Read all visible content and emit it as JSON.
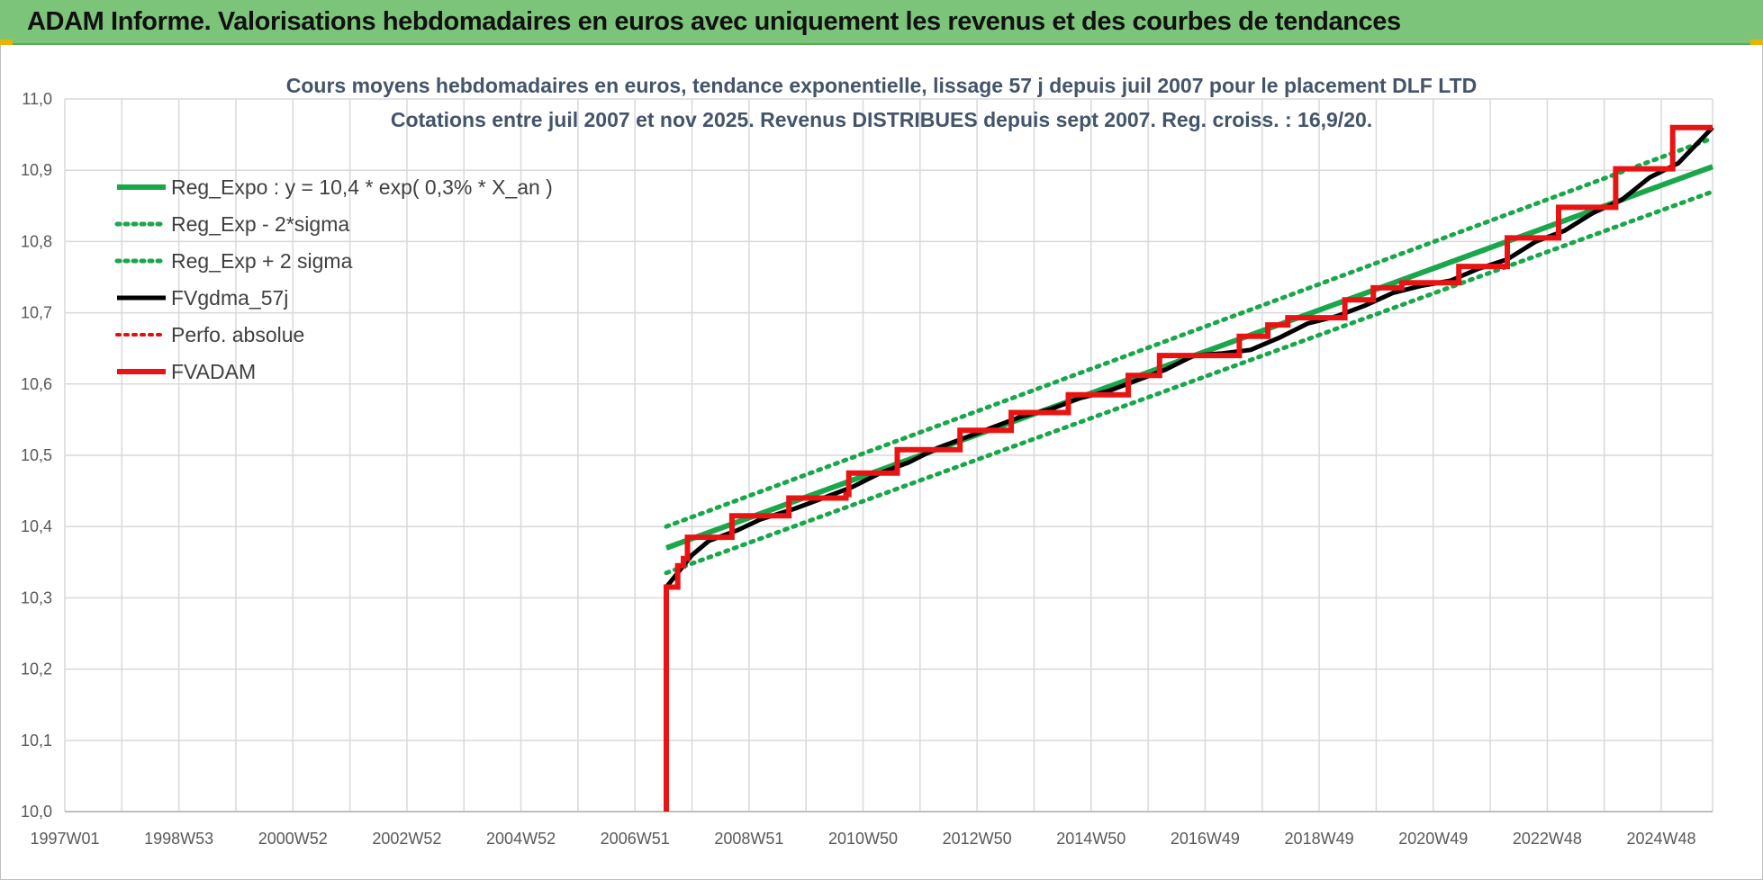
{
  "header": {
    "banner_title": "ADAM Informe. Valorisations hebdomadaires en euros avec uniquement les revenus et des courbes de tendances"
  },
  "colors": {
    "banner": "#7dc47b",
    "reg_expo": "#1aa64a",
    "bands": "#1aa64a",
    "fvgdma": "#000000",
    "perfo": "#e01010",
    "fvadam": "#e81414",
    "grid": "#d9d9d9"
  },
  "chart_data": {
    "type": "line",
    "title": "Cours moyens hebdomadaires en euros, tendance exponentielle, lissage 57 j depuis juil 2007 pour le placement DLF LTD",
    "subtitle": "Cotations entre juil 2007 et nov 2025. Revenus DISTRIBUES depuis sept 2007. Reg. croiss. : 16,9/20.",
    "xlabel": "",
    "ylabel": "",
    "x_range": [
      1997.0,
      2025.9
    ],
    "ylim": [
      10.0,
      11.0
    ],
    "y_ticks": [
      "10,0",
      "10,1",
      "10,2",
      "10,3",
      "10,4",
      "10,5",
      "10,6",
      "10,7",
      "10,8",
      "10,9",
      "11,0"
    ],
    "y_tick_values": [
      10.0,
      10.1,
      10.2,
      10.3,
      10.4,
      10.5,
      10.6,
      10.7,
      10.8,
      10.9,
      11.0
    ],
    "x_ticks": [
      {
        "label": "1997W01",
        "value": 1997.0
      },
      {
        "label": "1998W53",
        "value": 1999.0
      },
      {
        "label": "2000W52",
        "value": 2001.0
      },
      {
        "label": "2002W52",
        "value": 2003.0
      },
      {
        "label": "2004W52",
        "value": 2005.0
      },
      {
        "label": "2006W51",
        "value": 2007.0
      },
      {
        "label": "2008W51",
        "value": 2009.0
      },
      {
        "label": "2010W50",
        "value": 2011.0
      },
      {
        "label": "2012W50",
        "value": 2013.0
      },
      {
        "label": "2014W50",
        "value": 2015.0
      },
      {
        "label": "2016W49",
        "value": 2017.0
      },
      {
        "label": "2018W49",
        "value": 2019.0
      },
      {
        "label": "2020W49",
        "value": 2021.0
      },
      {
        "label": "2022W48",
        "value": 2023.0
      },
      {
        "label": "2024W48",
        "value": 2025.0
      }
    ],
    "grid": true,
    "legend_position": "top-left",
    "legend": [
      {
        "label": "Reg_Expo : y = 10,4 * exp( 0,3% *  X_an )",
        "color": "#1aa64a",
        "style": "solid"
      },
      {
        "label": "Reg_Exp - 2*sigma",
        "color": "#1aa64a",
        "style": "dotted"
      },
      {
        "label": "Reg_Exp + 2 sigma",
        "color": "#1aa64a",
        "style": "dotted"
      },
      {
        "label": "FVgdma_57j",
        "color": "#000000",
        "style": "solid"
      },
      {
        "label": "Perfo. absolue",
        "color": "#e01010",
        "style": "dotted"
      },
      {
        "label": "FVADAM",
        "color": "#e81414",
        "style": "solid"
      }
    ],
    "series": [
      {
        "name": "Reg_Expo : y = 10,4 * exp( 0,3% *  X_an )",
        "style": "solid",
        "points": [
          [
            2007.55,
            10.37
          ],
          [
            2025.9,
            10.905
          ]
        ]
      },
      {
        "name": "Reg_Exp - 2*sigma",
        "style": "dotted",
        "points": [
          [
            2007.55,
            10.335
          ],
          [
            2025.9,
            10.87
          ]
        ]
      },
      {
        "name": "Reg_Exp + 2 sigma",
        "style": "dotted",
        "points": [
          [
            2007.55,
            10.4
          ],
          [
            2025.9,
            10.945
          ]
        ]
      },
      {
        "name": "FVgdma_57j",
        "style": "solid",
        "points": [
          [
            2007.55,
            10.315
          ],
          [
            2007.75,
            10.335
          ],
          [
            2008.0,
            10.36
          ],
          [
            2008.3,
            10.38
          ],
          [
            2008.8,
            10.395
          ],
          [
            2009.2,
            10.41
          ],
          [
            2009.8,
            10.425
          ],
          [
            2010.3,
            10.44
          ],
          [
            2010.8,
            10.455
          ],
          [
            2011.3,
            10.475
          ],
          [
            2011.8,
            10.49
          ],
          [
            2012.3,
            10.51
          ],
          [
            2012.8,
            10.525
          ],
          [
            2013.3,
            10.54
          ],
          [
            2013.8,
            10.555
          ],
          [
            2014.3,
            10.565
          ],
          [
            2014.8,
            10.58
          ],
          [
            2015.3,
            10.59
          ],
          [
            2015.8,
            10.605
          ],
          [
            2016.3,
            10.62
          ],
          [
            2016.8,
            10.64
          ],
          [
            2017.3,
            10.643
          ],
          [
            2017.8,
            10.648
          ],
          [
            2018.3,
            10.665
          ],
          [
            2018.8,
            10.685
          ],
          [
            2019.3,
            10.695
          ],
          [
            2019.8,
            10.71
          ],
          [
            2020.3,
            10.728
          ],
          [
            2020.8,
            10.738
          ],
          [
            2021.3,
            10.745
          ],
          [
            2021.8,
            10.762
          ],
          [
            2022.3,
            10.775
          ],
          [
            2022.8,
            10.8
          ],
          [
            2023.3,
            10.815
          ],
          [
            2023.8,
            10.84
          ],
          [
            2024.3,
            10.858
          ],
          [
            2024.8,
            10.89
          ],
          [
            2025.3,
            10.91
          ],
          [
            2025.6,
            10.935
          ],
          [
            2025.9,
            10.96
          ]
        ]
      },
      {
        "name": "Perfo. absolue",
        "style": "dotted",
        "points": []
      },
      {
        "name": "FVADAM",
        "style": "solid",
        "points": [
          [
            2007.55,
            10.0
          ],
          [
            2007.55,
            10.315
          ],
          [
            2007.75,
            10.315
          ],
          [
            2007.75,
            10.345
          ],
          [
            2007.85,
            10.345
          ],
          [
            2007.85,
            10.355
          ],
          [
            2007.92,
            10.355
          ],
          [
            2007.92,
            10.385
          ],
          [
            2008.7,
            10.385
          ],
          [
            2008.7,
            10.415
          ],
          [
            2009.7,
            10.415
          ],
          [
            2009.7,
            10.44
          ],
          [
            2010.7,
            10.44
          ],
          [
            2010.7,
            10.445
          ],
          [
            2010.75,
            10.445
          ],
          [
            2010.75,
            10.475
          ],
          [
            2011.6,
            10.475
          ],
          [
            2011.6,
            10.508
          ],
          [
            2012.7,
            10.508
          ],
          [
            2012.7,
            10.535
          ],
          [
            2013.6,
            10.535
          ],
          [
            2013.6,
            10.56
          ],
          [
            2014.6,
            10.56
          ],
          [
            2014.6,
            10.585
          ],
          [
            2015.65,
            10.585
          ],
          [
            2015.65,
            10.612
          ],
          [
            2016.2,
            10.612
          ],
          [
            2016.2,
            10.64
          ],
          [
            2017.6,
            10.64
          ],
          [
            2017.6,
            10.667
          ],
          [
            2018.1,
            10.667
          ],
          [
            2018.1,
            10.683
          ],
          [
            2018.45,
            10.683
          ],
          [
            2018.45,
            10.693
          ],
          [
            2019.45,
            10.693
          ],
          [
            2019.45,
            10.718
          ],
          [
            2019.95,
            10.718
          ],
          [
            2019.95,
            10.735
          ],
          [
            2020.45,
            10.735
          ],
          [
            2020.45,
            10.742
          ],
          [
            2021.45,
            10.742
          ],
          [
            2021.45,
            10.765
          ],
          [
            2022.3,
            10.765
          ],
          [
            2022.3,
            10.805
          ],
          [
            2023.2,
            10.805
          ],
          [
            2023.2,
            10.848
          ],
          [
            2024.2,
            10.848
          ],
          [
            2024.2,
            10.902
          ],
          [
            2025.2,
            10.902
          ],
          [
            2025.2,
            10.96
          ],
          [
            2025.9,
            10.96
          ]
        ]
      }
    ]
  }
}
